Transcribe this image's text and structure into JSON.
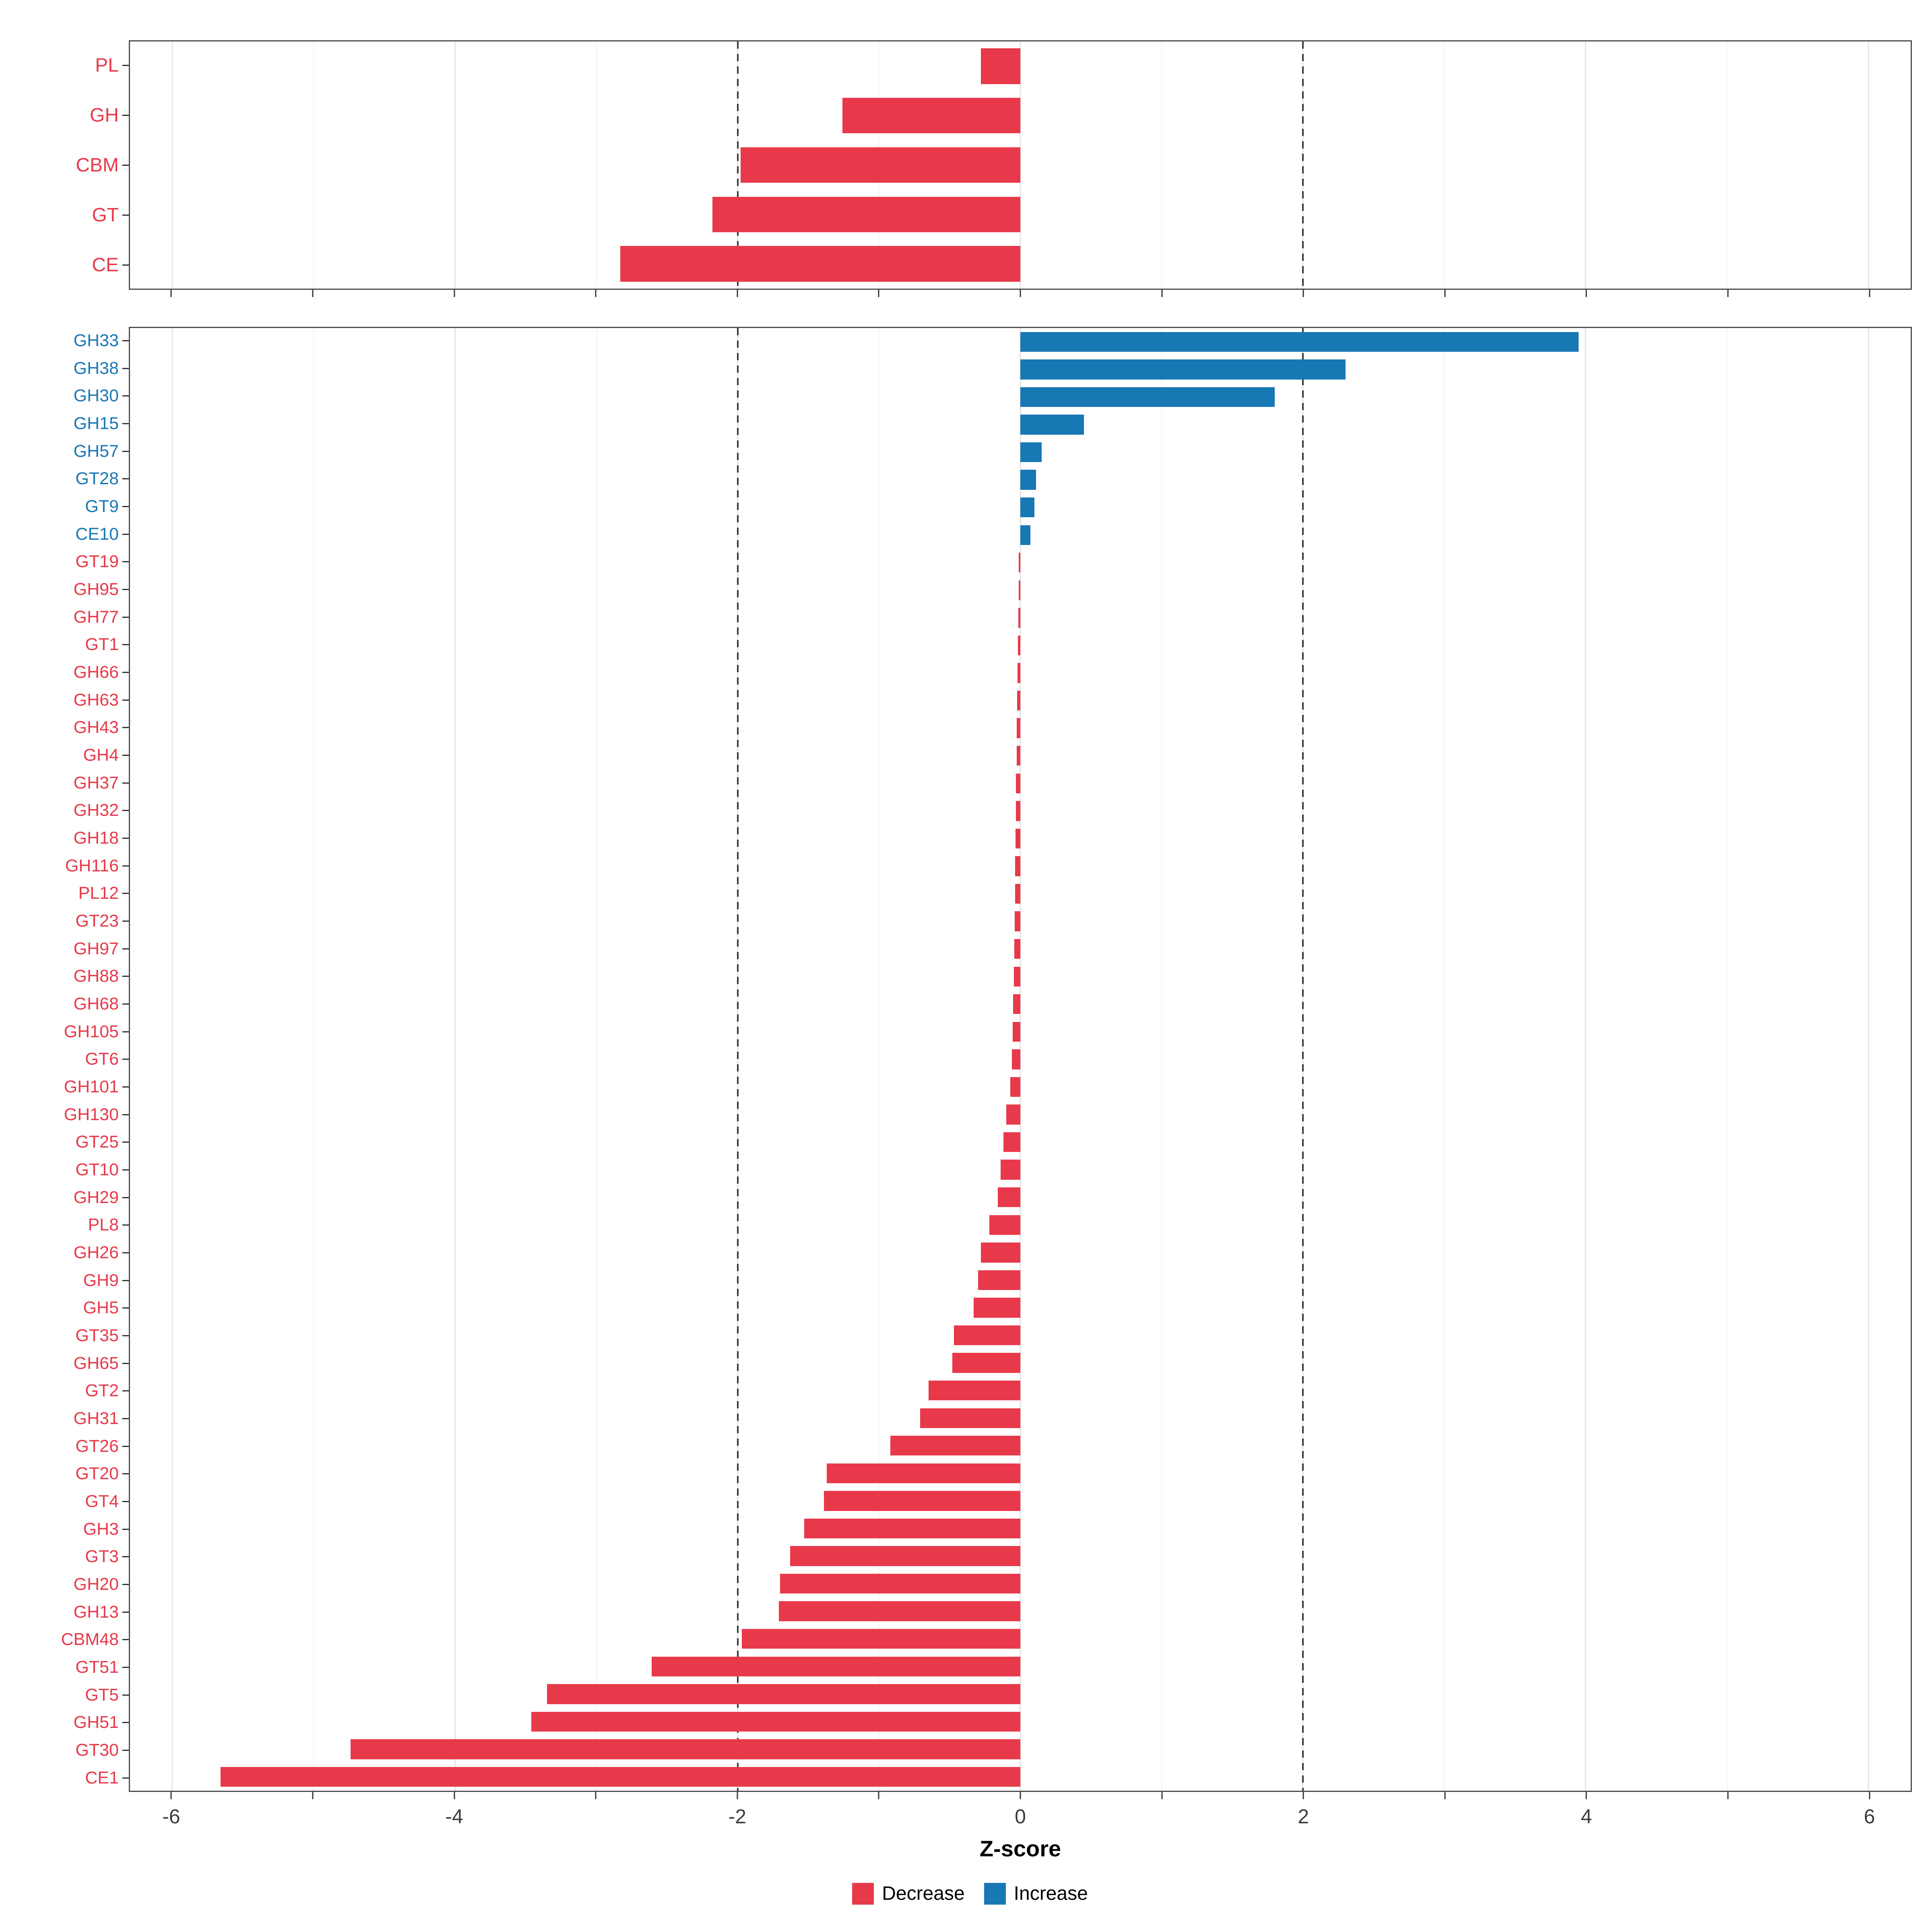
{
  "chart_data": {
    "type": "bar",
    "orientation": "horizontal",
    "xlabel": "Z-score",
    "xlim": [
      -6.3,
      6.3
    ],
    "x_ticks": [
      -6,
      -4,
      -2,
      0,
      2,
      4,
      6
    ],
    "minor_tick_step": 1,
    "reference_lines": [
      -2,
      2
    ],
    "grid": true,
    "legend_position": "bottom",
    "colors": {
      "decrease": "#E8394A",
      "increase": "#1878B4"
    },
    "legend": [
      {
        "label": "Decrease",
        "key": "decrease"
      },
      {
        "label": "Increase",
        "key": "increase"
      }
    ],
    "panels": [
      {
        "name": "cazyme-class",
        "rows": [
          {
            "label": "PL",
            "value": -0.28,
            "direction": "decrease"
          },
          {
            "label": "GH",
            "value": -1.26,
            "direction": "decrease"
          },
          {
            "label": "CBM",
            "value": -1.98,
            "direction": "decrease"
          },
          {
            "label": "GT",
            "value": -2.18,
            "direction": "decrease"
          },
          {
            "label": "CE",
            "value": -2.83,
            "direction": "decrease"
          }
        ]
      },
      {
        "name": "cazyme-family",
        "rows": [
          {
            "label": "GH33",
            "value": 3.95,
            "direction": "increase"
          },
          {
            "label": "GH38",
            "value": 2.3,
            "direction": "increase"
          },
          {
            "label": "GH30",
            "value": 1.8,
            "direction": "increase"
          },
          {
            "label": "GH15",
            "value": 0.45,
            "direction": "increase"
          },
          {
            "label": "GH57",
            "value": 0.15,
            "direction": "increase"
          },
          {
            "label": "GT28",
            "value": 0.11,
            "direction": "increase"
          },
          {
            "label": "GT9",
            "value": 0.1,
            "direction": "increase"
          },
          {
            "label": "CE10",
            "value": 0.07,
            "direction": "increase"
          },
          {
            "label": "GT19",
            "value": -0.005,
            "direction": "decrease"
          },
          {
            "label": "GH95",
            "value": -0.01,
            "direction": "decrease"
          },
          {
            "label": "GH77",
            "value": -0.015,
            "direction": "decrease"
          },
          {
            "label": "GT1",
            "value": -0.018,
            "direction": "decrease"
          },
          {
            "label": "GH66",
            "value": -0.02,
            "direction": "decrease"
          },
          {
            "label": "GH63",
            "value": -0.022,
            "direction": "decrease"
          },
          {
            "label": "GH43",
            "value": -0.025,
            "direction": "decrease"
          },
          {
            "label": "GH4",
            "value": -0.027,
            "direction": "decrease"
          },
          {
            "label": "GH37",
            "value": -0.03,
            "direction": "decrease"
          },
          {
            "label": "GH32",
            "value": -0.032,
            "direction": "decrease"
          },
          {
            "label": "GH18",
            "value": -0.034,
            "direction": "decrease"
          },
          {
            "label": "GH116",
            "value": -0.036,
            "direction": "decrease"
          },
          {
            "label": "PL12",
            "value": -0.038,
            "direction": "decrease"
          },
          {
            "label": "GT23",
            "value": -0.04,
            "direction": "decrease"
          },
          {
            "label": "GH97",
            "value": -0.042,
            "direction": "decrease"
          },
          {
            "label": "GH88",
            "value": -0.045,
            "direction": "decrease"
          },
          {
            "label": "GH68",
            "value": -0.05,
            "direction": "decrease"
          },
          {
            "label": "GH105",
            "value": -0.055,
            "direction": "decrease"
          },
          {
            "label": "GT6",
            "value": -0.06,
            "direction": "decrease"
          },
          {
            "label": "GH101",
            "value": -0.07,
            "direction": "decrease"
          },
          {
            "label": "GH130",
            "value": -0.1,
            "direction": "decrease"
          },
          {
            "label": "GT25",
            "value": -0.12,
            "direction": "decrease"
          },
          {
            "label": "GT10",
            "value": -0.14,
            "direction": "decrease"
          },
          {
            "label": "GH29",
            "value": -0.16,
            "direction": "decrease"
          },
          {
            "label": "PL8",
            "value": -0.22,
            "direction": "decrease"
          },
          {
            "label": "GH26",
            "value": -0.28,
            "direction": "decrease"
          },
          {
            "label": "GH9",
            "value": -0.3,
            "direction": "decrease"
          },
          {
            "label": "GH5",
            "value": -0.33,
            "direction": "decrease"
          },
          {
            "label": "GT35",
            "value": -0.47,
            "direction": "decrease"
          },
          {
            "label": "GH65",
            "value": -0.48,
            "direction": "decrease"
          },
          {
            "label": "GT2",
            "value": -0.65,
            "direction": "decrease"
          },
          {
            "label": "GH31",
            "value": -0.71,
            "direction": "decrease"
          },
          {
            "label": "GT26",
            "value": -0.92,
            "direction": "decrease"
          },
          {
            "label": "GT20",
            "value": -1.37,
            "direction": "decrease"
          },
          {
            "label": "GT4",
            "value": -1.39,
            "direction": "decrease"
          },
          {
            "label": "GH3",
            "value": -1.53,
            "direction": "decrease"
          },
          {
            "label": "GT3",
            "value": -1.63,
            "direction": "decrease"
          },
          {
            "label": "GH20",
            "value": -1.7,
            "direction": "decrease"
          },
          {
            "label": "GH13",
            "value": -1.71,
            "direction": "decrease"
          },
          {
            "label": "CBM48",
            "value": -1.97,
            "direction": "decrease"
          },
          {
            "label": "GT51",
            "value": -2.61,
            "direction": "decrease"
          },
          {
            "label": "GT5",
            "value": -3.35,
            "direction": "decrease"
          },
          {
            "label": "GH51",
            "value": -3.46,
            "direction": "decrease"
          },
          {
            "label": "GT30",
            "value": -4.74,
            "direction": "decrease"
          },
          {
            "label": "CE1",
            "value": -5.66,
            "direction": "decrease"
          }
        ]
      }
    ]
  }
}
